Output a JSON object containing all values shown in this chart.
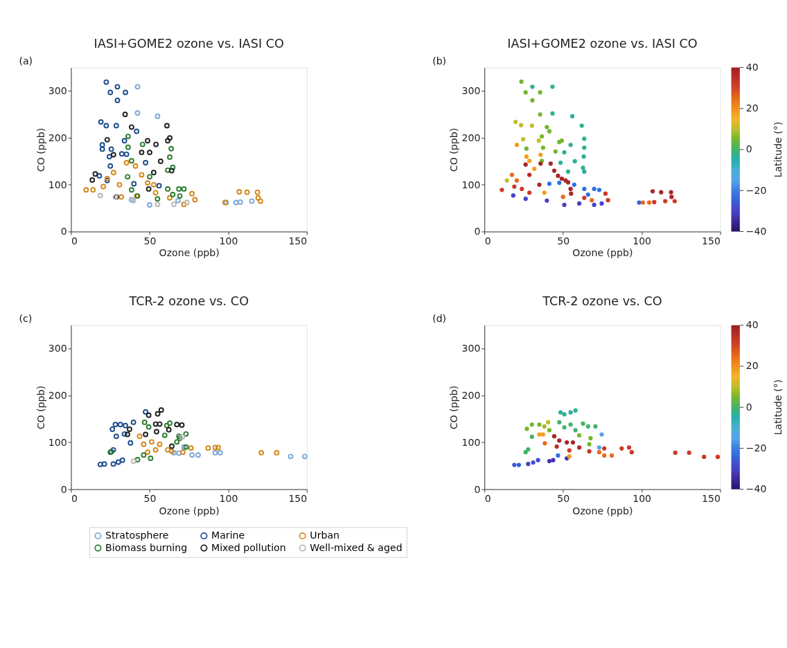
{
  "chart_data": [
    {
      "type": "scatter",
      "title": "IASI+GOME2 ozone vs. IASI CO",
      "xlabel": "Ozone (ppb)",
      "ylabel": "CO (ppb)",
      "annotations": [
        "(a)"
      ],
      "xlim": [
        0,
        150
      ],
      "ylim": [
        0,
        350
      ],
      "xticks": [
        0,
        50,
        100,
        150
      ],
      "yticks": [
        0,
        100,
        200,
        300
      ],
      "marker": "circle",
      "grid": false,
      "legend": "bottom",
      "series": [
        {
          "name": "Stratosphere",
          "color": "#7fa9d8",
          "x": [
            42.3,
            42.3,
            55,
            98.7,
            105,
            107.7,
            115,
            68,
            50,
            38.5
          ],
          "values": [
            309,
            253,
            246,
            62,
            62,
            63,
            65,
            66,
            57,
            68
          ]
        },
        {
          "name": "Marine",
          "color": "#1f4e8c",
          "x": [
            22.4,
            29.5,
            25,
            34.6,
            29.5,
            19,
            22.4,
            28.8,
            41.7,
            34,
            19.9,
            19.9,
            25.6,
            32.3,
            35.3,
            24.4,
            47.4,
            25,
            18,
            23,
            40,
            56
          ],
          "values": [
            319,
            309,
            297,
            297,
            280,
            234,
            226,
            226,
            214,
            194,
            185,
            176,
            176,
            166,
            165,
            160,
            147,
            140,
            119,
            109,
            102,
            98
          ]
        },
        {
          "name": "Urban",
          "color": "#d4891c",
          "x": [
            9.6,
            14,
            20.5,
            27,
            30.8,
            35.3,
            41,
            44.9,
            48.7,
            52.6,
            53.8,
            32,
            41.7,
            62.8,
            76.9,
            78.8,
            98,
            107,
            112,
            118.6,
            119,
            120.5,
            71.8,
            23
          ],
          "values": [
            89,
            89,
            96,
            126,
            100,
            147,
            140,
            121,
            104,
            100,
            83,
            74,
            76,
            72,
            81,
            68,
            62,
            85,
            84,
            84,
            72,
            65,
            58,
            113
          ]
        },
        {
          "name": "Biomass burning",
          "color": "#2e7d32",
          "x": [
            36.3,
            45.5,
            36.3,
            63.7,
            62.8,
            64.7,
            61.5,
            38.5,
            36,
            50,
            61.5,
            68.6,
            71.8,
            64.7,
            69.2,
            38.5,
            42.3,
            55
          ],
          "values": [
            203,
            186,
            180,
            177,
            159,
            137,
            131,
            151,
            117,
            117,
            91,
            91,
            91,
            79,
            76,
            89,
            76,
            70
          ]
        },
        {
          "name": "Mixed pollution",
          "color": "#222222",
          "x": [
            34.4,
            38.5,
            61,
            62.8,
            23,
            48.7,
            54,
            61.5,
            44.9,
            50,
            57,
            27,
            15.4,
            13.5,
            52.6,
            64,
            28.8,
            49.4
          ],
          "values": [
            250,
            223,
            226,
            200,
            196,
            194,
            186,
            194,
            169,
            169,
            150,
            164,
            123,
            110,
            126,
            130,
            74,
            91
          ]
        },
        {
          "name": "Well-mixed & aged",
          "color": "#b8b8b8",
          "x": [
            18.6,
            39.7,
            55,
            65.4,
            73.7,
            28.2
          ],
          "values": [
            77,
            66,
            58,
            58,
            62,
            74
          ]
        }
      ]
    },
    {
      "type": "scatter",
      "title": "IASI+GOME2 ozone vs. IASI CO",
      "xlabel": "Ozone (ppb)",
      "ylabel": "CO (ppb)",
      "clabel": "Latitude (°)",
      "annotations": [
        "(b)"
      ],
      "xlim": [
        0,
        150
      ],
      "ylim": [
        0,
        350
      ],
      "xticks": [
        0,
        50,
        100,
        150
      ],
      "yticks": [
        0,
        100,
        200,
        300
      ],
      "clim": [
        -40,
        40
      ],
      "cticks": [
        -40,
        -20,
        0,
        20,
        40
      ],
      "marker": "circle",
      "grid": false,
      "x": [
        23.5,
        30.5,
        26.2,
        35.4,
        30.5,
        43.3,
        43.3,
        35.4,
        55.9,
        61.9,
        19.8,
        23.3,
        30.2,
        39.7,
        41.3,
        36.5,
        24.6,
        34.6,
        47.6,
        49.2,
        54.8,
        63.5,
        63.5,
        20.6,
        26.7,
        37.3,
        45.2,
        50.8,
        57.5,
        63.2,
        26.7,
        28.6,
        35.7,
        36.5,
        26.2,
        35.7,
        42.1,
        48.4,
        62.7,
        63.5,
        53.2,
        31.7,
        44.4,
        46.8,
        49.2,
        51.6,
        53.2,
        54.8,
        55.1,
        34.9,
        28.6,
        17.5,
        14.3,
        11.1,
        19,
        23.8,
        28.6,
        20.6,
        38.1,
        41.3,
        47.6,
        57.1,
        63.5,
        69.8,
        73,
        65.9,
        18.3,
        26.2,
        39.7,
        50.8,
        60.3,
        69.8,
        74.6,
        50,
        63.5,
        68.3,
        77,
        78.6,
        98.4,
        100.8,
        104.8,
        108,
        107,
        112.4,
        118.7,
        119,
        115,
        121
      ],
      "values": [
        320,
        309,
        297,
        297,
        280,
        309,
        252,
        250,
        246,
        226,
        234,
        227,
        226,
        223,
        214,
        203,
        197,
        194,
        191,
        194,
        185,
        198,
        179,
        185,
        177,
        179,
        171,
        169,
        150,
        160,
        160,
        151,
        164,
        151,
        143,
        145,
        145,
        147,
        136,
        128,
        128,
        134,
        130,
        119,
        113,
        109,
        105,
        91,
        81,
        100,
        121,
        121,
        109,
        89,
        96,
        91,
        83,
        109,
        83,
        102,
        104,
        100,
        91,
        91,
        89,
        79,
        77,
        70,
        66,
        57,
        60,
        57,
        60,
        74,
        72,
        67,
        81,
        67,
        62,
        62,
        62,
        63,
        86,
        84,
        84,
        74,
        65,
        65
      ],
      "cvalues": [
        5,
        -3,
        5,
        5,
        5,
        -3,
        -3,
        5,
        -3,
        -3,
        10,
        10,
        10,
        5,
        5,
        5,
        10,
        10,
        5,
        5,
        -3,
        -3,
        -3,
        18,
        5,
        5,
        5,
        -3,
        -3,
        -3,
        18,
        18,
        18,
        5,
        38,
        38,
        38,
        -3,
        -3,
        -3,
        -3,
        18,
        38,
        38,
        38,
        38,
        38,
        38,
        38,
        38,
        36,
        25,
        10,
        32,
        32,
        32,
        32,
        25,
        18,
        -22,
        -22,
        -22,
        -22,
        -22,
        -22,
        -22,
        -30,
        -30,
        -30,
        -30,
        -30,
        -30,
        -30,
        25,
        32,
        25,
        32,
        32,
        -25,
        25,
        25,
        32,
        38,
        38,
        38,
        38,
        32,
        32
      ]
    },
    {
      "type": "scatter",
      "title": "TCR-2 ozone vs. CO",
      "xlabel": "Ozone (ppb)",
      "ylabel": "CO (ppb)",
      "annotations": [
        "(c)"
      ],
      "xlim": [
        0,
        150
      ],
      "ylim": [
        0,
        350
      ],
      "xticks": [
        0,
        50,
        100,
        150
      ],
      "yticks": [
        0,
        100,
        200,
        300
      ],
      "marker": "circle",
      "grid": false,
      "legend": "bottom",
      "series": [
        {
          "name": "Stratosphere",
          "color": "#7fa9d8",
          "x": [
            65.4,
            68.6,
            76.9,
            80.8,
            91.7,
            94.9,
            139.7,
            148.7,
            71.8
          ],
          "values": [
            78,
            77,
            73,
            73,
            78,
            78,
            70,
            70,
            90
          ]
        },
        {
          "name": "Marine",
          "color": "#1f4e8c",
          "x": [
            18.6,
            21.2,
            26.9,
            30.1,
            32.7,
            26.9,
            25.6,
            28.8,
            37.8,
            26.3,
            28.2,
            31.4,
            34.6,
            39.7,
            47.4,
            34
          ],
          "values": [
            53,
            54,
            54,
            58,
            62,
            84,
            80,
            113,
            99,
            128,
            138,
            138,
            136,
            143,
            165,
            118
          ]
        },
        {
          "name": "Urban",
          "color": "#d4891c",
          "x": [
            43.6,
            46.2,
            51.3,
            53.8,
            56.4,
            48.7,
            61.5,
            64.1,
            71.2,
            76.3,
            87.2,
            91.7,
            93.6,
            121,
            130.8
          ],
          "values": [
            113,
            96,
            101,
            84,
            96,
            79,
            84,
            81,
            79,
            88,
            88,
            89,
            89,
            78,
            78
          ]
        },
        {
          "name": "Biomass burning",
          "color": "#2e7d32",
          "x": [
            46.8,
            49.4,
            60.9,
            62.8,
            59.6,
            68.6,
            73.1,
            73.1,
            46.2,
            50.6,
            42.3,
            25,
            67.3,
            69.2
          ],
          "values": [
            143,
            133,
            136,
            141,
            115,
            113,
            118,
            90,
            73,
            66,
            63,
            79,
            101,
            109
          ]
        },
        {
          "name": "Mixed pollution",
          "color": "#222222",
          "x": [
            49.4,
            55.1,
            57.4,
            37.2,
            35.9,
            53.8,
            56.4,
            54.4,
            62.2,
            67.3,
            70.5,
            64.1,
            47.4
          ],
          "values": [
            158,
            161,
            169,
            128,
            117,
            139,
            139,
            123,
            127,
            138,
            137,
            92,
            117
          ]
        },
        {
          "name": "Well-mixed & aged",
          "color": "#b8b8b8",
          "x": [
            39.7,
            70.8
          ],
          "values": [
            60,
            112
          ]
        }
      ]
    },
    {
      "type": "scatter",
      "title": "TCR-2 ozone vs. CO",
      "xlabel": "Ozone (ppb)",
      "ylabel": "CO (ppb)",
      "clabel": "Latitude (°)",
      "annotations": [
        "(d)"
      ],
      "xlim": [
        0,
        150
      ],
      "ylim": [
        0,
        350
      ],
      "xticks": [
        0,
        50,
        100,
        150
      ],
      "yticks": [
        0,
        100,
        200,
        300
      ],
      "clim": [
        -40,
        40
      ],
      "cticks": [
        -40,
        -20,
        0,
        20,
        40
      ],
      "marker": "circle",
      "grid": false,
      "x": [
        19,
        21.9,
        27.8,
        31,
        34.1,
        41.3,
        43.7,
        46.8,
        52.4,
        26.2,
        27.8,
        30.2,
        27,
        30.2,
        34.9,
        38.1,
        40.5,
        41.3,
        34.9,
        37.3,
        38.4,
        48.4,
        50.8,
        54.8,
        57.9,
        47.6,
        50.8,
        54.8,
        57.9,
        62.7,
        65.9,
        70.6,
        60.3,
        67.5,
        74.6,
        66.7,
        73,
        44.4,
        47.6,
        52.4,
        56.3,
        46,
        54,
        60.3,
        66.7,
        54,
        73,
        76.2,
        81,
        76.2,
        87.3,
        92,
        93.7,
        121.4,
        130.2,
        139.7,
        148.4
      ],
      "values": [
        52,
        52,
        54,
        57,
        62,
        60,
        62,
        72,
        66,
        79,
        85,
        112,
        129,
        138,
        138,
        134,
        143,
        126,
        117,
        117,
        98,
        164,
        160,
        164,
        168,
        143,
        132,
        138,
        126,
        140,
        134,
        134,
        115,
        109,
        117,
        96,
        89,
        113,
        104,
        100,
        100,
        91,
        83,
        89,
        81,
        70,
        79,
        72,
        72,
        87,
        87,
        89,
        79,
        78,
        78,
        69,
        69
      ],
      "cvalues": [
        -25,
        -25,
        -30,
        -28,
        -28,
        -33,
        -33,
        -22,
        -33,
        0,
        0,
        0,
        5,
        5,
        5,
        8,
        10,
        5,
        18,
        18,
        25,
        -3,
        -3,
        -3,
        -3,
        0,
        0,
        0,
        0,
        0,
        0,
        0,
        5,
        5,
        -15,
        5,
        -15,
        38,
        38,
        38,
        38,
        36,
        32,
        36,
        32,
        18,
        25,
        25,
        25,
        32,
        32,
        32,
        32,
        32,
        32,
        32,
        32
      ]
    }
  ]
}
